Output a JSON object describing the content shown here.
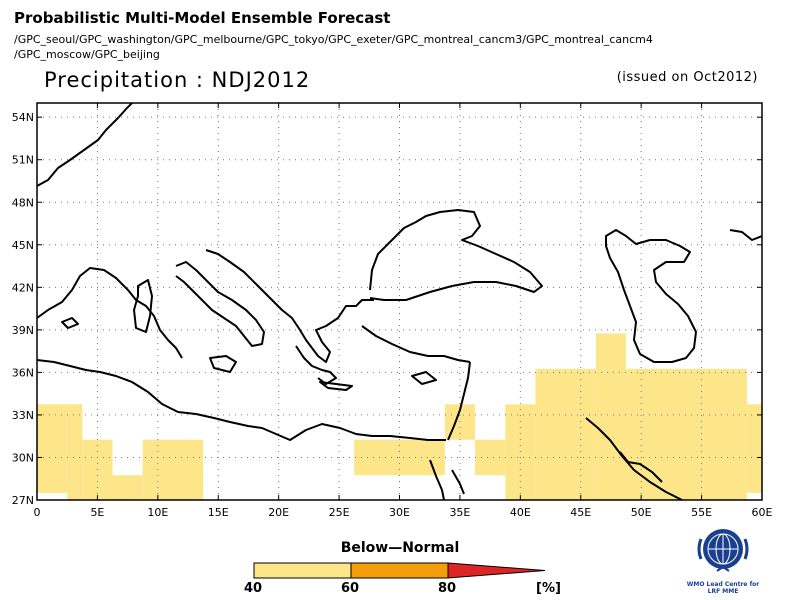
{
  "header": {
    "title": "Probabilistic Multi-Model Ensemble Forecast",
    "models_line1": "/GPC_seoul/GPC_washington/GPC_melbourne/GPC_tokyo/GPC_exeter/GPC_montreal_cancm3/GPC_montreal_cancm4",
    "models_line2": "/GPC_moscow/GPC_beijing",
    "variable_title": "Precipitation : NDJ2012",
    "issued": "(issued on Oct2012)"
  },
  "map": {
    "lon_range": [
      0,
      60
    ],
    "lat_range": [
      27,
      55
    ],
    "lon_ticks": [
      {
        "value": 0,
        "label": "0"
      },
      {
        "value": 5,
        "label": "5E"
      },
      {
        "value": 10,
        "label": "10E"
      },
      {
        "value": 15,
        "label": "15E"
      },
      {
        "value": 20,
        "label": "20E"
      },
      {
        "value": 25,
        "label": "25E"
      },
      {
        "value": 30,
        "label": "30E"
      },
      {
        "value": 35,
        "label": "35E"
      },
      {
        "value": 40,
        "label": "40E"
      },
      {
        "value": 45,
        "label": "45E"
      },
      {
        "value": 50,
        "label": "50E"
      },
      {
        "value": 55,
        "label": "55E"
      },
      {
        "value": 60,
        "label": "60E"
      }
    ],
    "lat_ticks": [
      {
        "value": 27,
        "label": "27N"
      },
      {
        "value": 30,
        "label": "30N"
      },
      {
        "value": 33,
        "label": "33N"
      },
      {
        "value": 36,
        "label": "36N"
      },
      {
        "value": 39,
        "label": "39N"
      },
      {
        "value": 42,
        "label": "42N"
      },
      {
        "value": 45,
        "label": "45N"
      },
      {
        "value": 48,
        "label": "48N"
      },
      {
        "value": 51,
        "label": "51N"
      },
      {
        "value": 54,
        "label": "54N"
      }
    ],
    "grid": true,
    "cell_color": "#fde68a",
    "cells_below_normal_40_60": [
      {
        "lon": [
          0,
          2.5
        ],
        "lat": [
          27.5,
          33.75
        ]
      },
      {
        "lon": [
          2.5,
          3.75
        ],
        "lat": [
          27,
          33.75
        ]
      },
      {
        "lon": [
          3.75,
          6.25
        ],
        "lat": [
          27,
          31.25
        ]
      },
      {
        "lon": [
          6.25,
          8.75
        ],
        "lat": [
          27,
          28.75
        ]
      },
      {
        "lon": [
          8.75,
          13.75
        ],
        "lat": [
          27,
          31.25
        ]
      },
      {
        "lon": [
          26.25,
          33.75
        ],
        "lat": [
          28.75,
          31.25
        ]
      },
      {
        "lon": [
          33.75,
          36.25
        ],
        "lat": [
          31.25,
          33.75
        ]
      },
      {
        "lon": [
          36.25,
          38.75
        ],
        "lat": [
          28.75,
          31.25
        ]
      },
      {
        "lon": [
          38.75,
          41.25
        ],
        "lat": [
          27,
          33.75
        ]
      },
      {
        "lon": [
          41.25,
          46.25
        ],
        "lat": [
          27,
          36.25
        ]
      },
      {
        "lon": [
          46.25,
          48.75
        ],
        "lat": [
          27,
          38.75
        ]
      },
      {
        "lon": [
          48.75,
          58.75
        ],
        "lat": [
          27,
          36.25
        ]
      },
      {
        "lon": [
          58.75,
          60
        ],
        "lat": [
          27.5,
          33.75
        ]
      }
    ]
  },
  "legend": {
    "title": "Below—Normal",
    "bins": [
      {
        "from": 40,
        "to": 60,
        "color": "#fde68a"
      },
      {
        "from": 60,
        "to": 80,
        "color": "#f59e0b"
      },
      {
        "from": 80,
        "to": 100,
        "color": "#dc2626"
      }
    ],
    "tick_labels": [
      "40",
      "60",
      "80"
    ],
    "unit": "[%]"
  },
  "logo": {
    "icon": "wmo-emblem-icon",
    "line1": "WMO Lead Centre for",
    "line2": "LRF MME"
  }
}
